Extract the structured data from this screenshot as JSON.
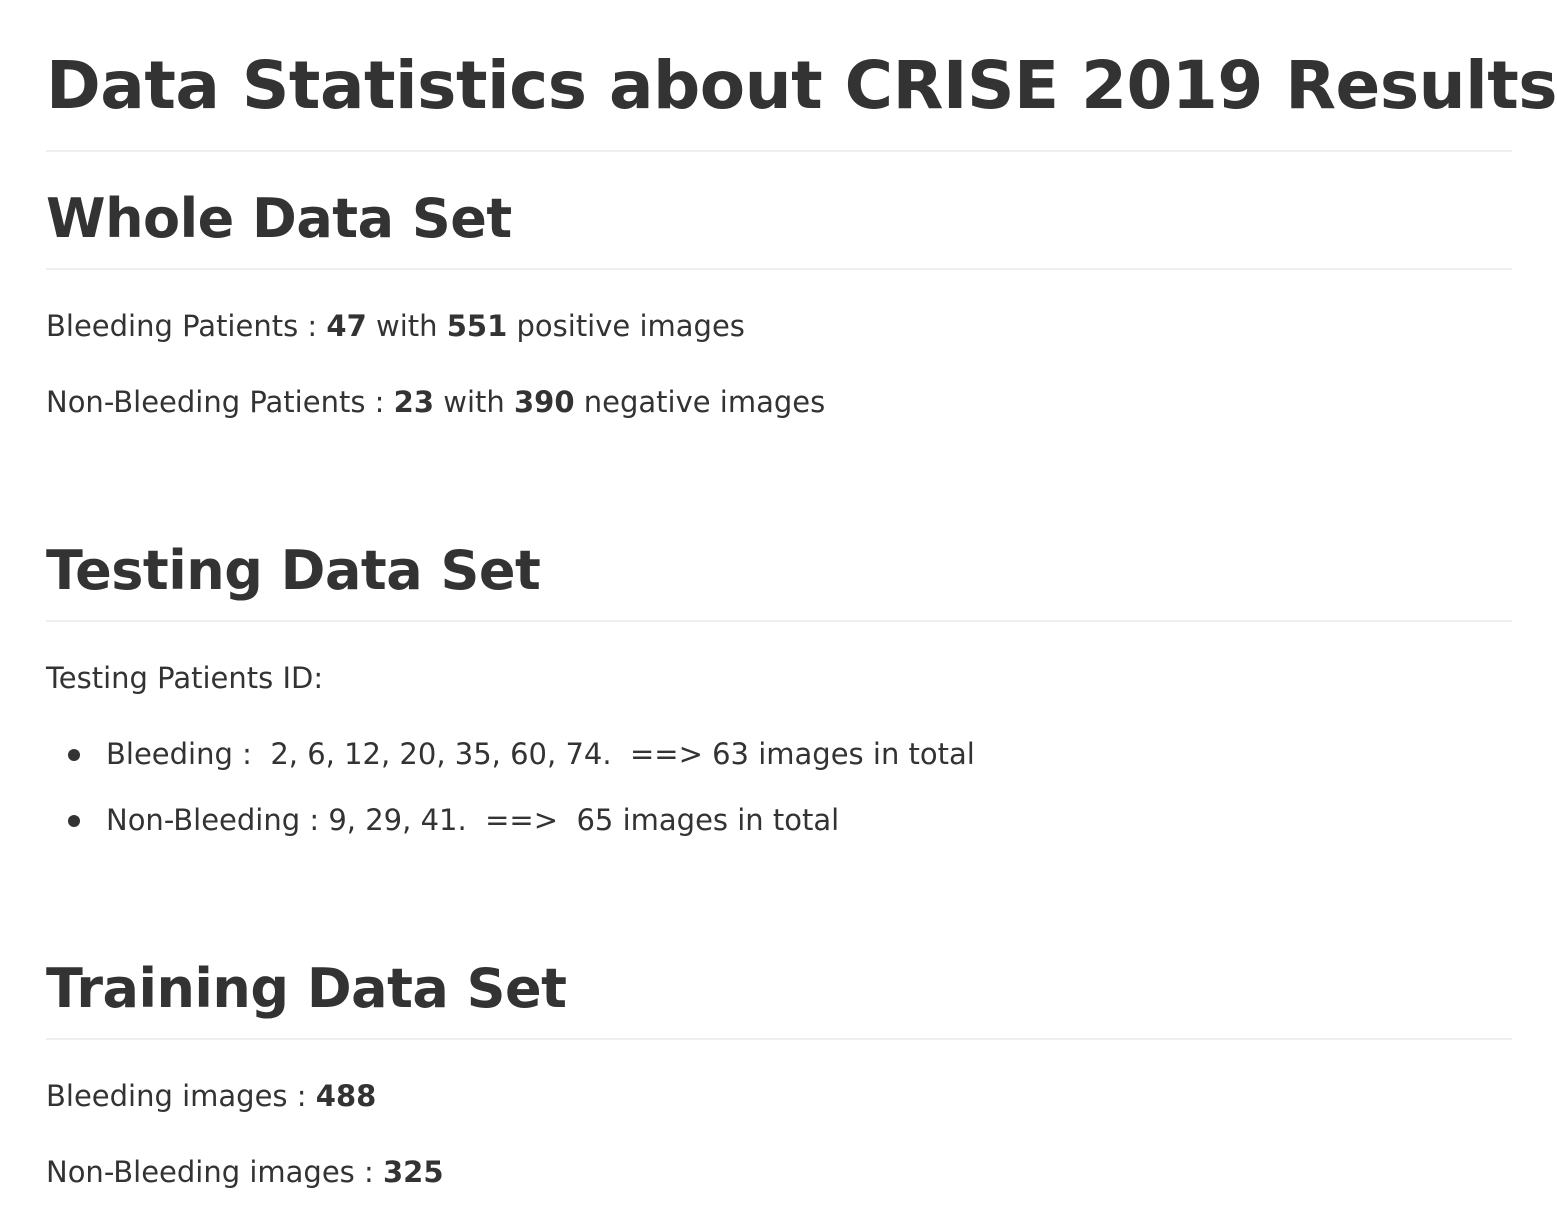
{
  "page_title": "Data Statistics about CRISE 2019 Results",
  "whole_data_set": {
    "heading": "Whole Data Set",
    "bleeding_label": "Bleeding Patients : ",
    "bleeding_patients": "47",
    "with_1": " with ",
    "positive_images": "551",
    "positive_suffix": " positive images",
    "nonbleeding_label": "Non-Bleeding Patients : ",
    "nonbleeding_patients": "23",
    "with_2": " with ",
    "negative_images": "390",
    "negative_suffix": " negative images"
  },
  "testing_data_set": {
    "heading": "Testing Data Set",
    "patients_label": "Testing Patients ID:",
    "items": [
      "Bleeding :  2, 6, 12, 20, 35, 60, 74.  ==> 63 images in total",
      "Non-Bleeding : 9, 29, 41.  ==>  65 images in total"
    ]
  },
  "training_data_set": {
    "heading": "Training Data Set",
    "bleeding_label": "Bleeding images : ",
    "bleeding_images": "488",
    "nonbleeding_label": "Non-Bleeding images : ",
    "nonbleeding_images": "325"
  }
}
